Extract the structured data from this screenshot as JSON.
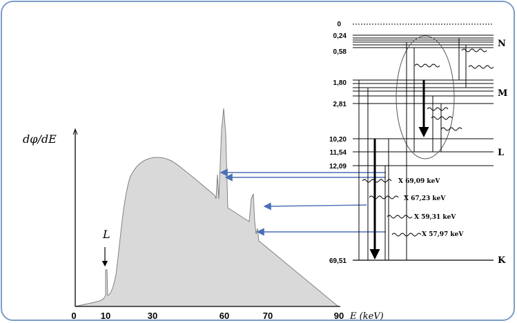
{
  "y_axis_label": "dφ/dE",
  "x_axis_unit_label": "E (keV)",
  "x_ticks": [
    "0",
    "10",
    "30",
    "60",
    "70",
    "90"
  ],
  "l_peak_label": "L",
  "energy_levels": {
    "values": [
      "0",
      "0,24",
      "0,58",
      "1,80",
      "2,81",
      "10,20",
      "11,54",
      "12,09",
      "69,51"
    ],
    "shells": [
      "N",
      "M",
      "L",
      "K"
    ]
  },
  "transitions": [
    "X 69,09 keV",
    "X 67,23 keV",
    "X 59,31 keV",
    "X 57,97 keV"
  ],
  "colors": {
    "spectrum_fill": "#d9d9d9",
    "arrow_blue": "#4a6fb5",
    "frame_border": "#7a9cc6"
  }
}
